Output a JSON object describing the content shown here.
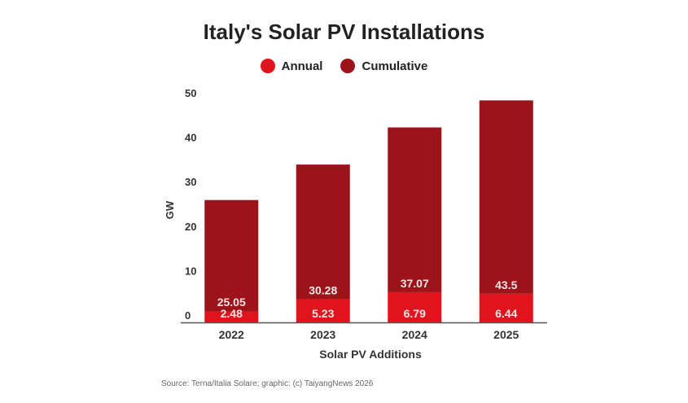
{
  "chart_data": {
    "type": "bar",
    "stacked": true,
    "title": "Italy's Solar PV Installations",
    "xlabel": "Solar PV Additions",
    "ylabel": "GW",
    "ylim": [
      0,
      50
    ],
    "yticks": [
      0,
      10,
      20,
      30,
      40,
      50
    ],
    "categories": [
      "2022",
      "2023",
      "2024",
      "2025"
    ],
    "series": [
      {
        "name": "Annual",
        "color": "#e0141c",
        "values": [
          2.48,
          5.23,
          6.79,
          6.44
        ]
      },
      {
        "name": "Cumulative",
        "color": "#9c1419",
        "values": [
          25.05,
          30.28,
          37.07,
          43.5
        ]
      }
    ],
    "legend_position": "top-center",
    "grid": false,
    "source": "Source: Terna/Italia Solare; graphic: (c) TaiyangNews 2026"
  }
}
